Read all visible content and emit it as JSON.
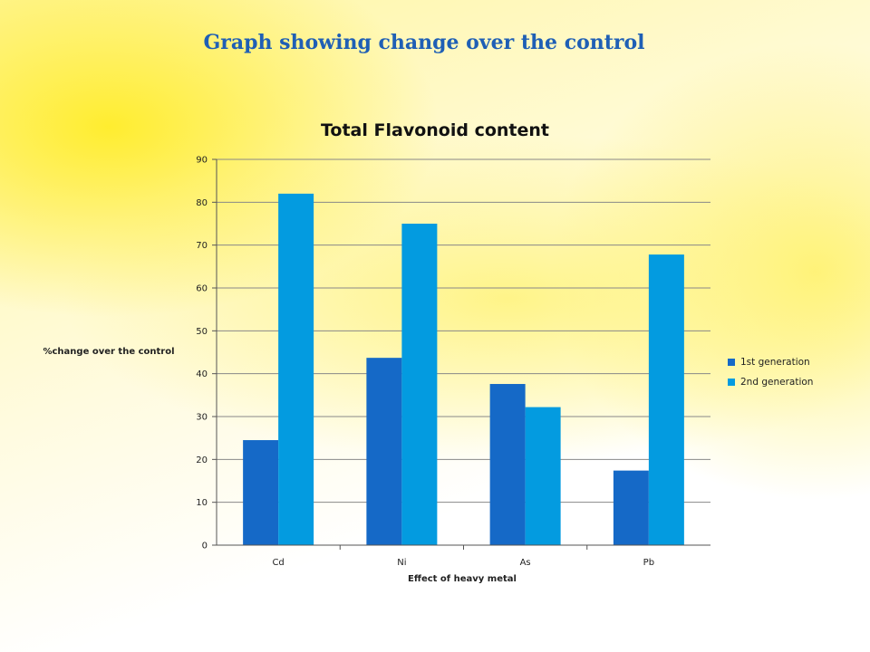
{
  "slide": {
    "title": "Graph showing change over the control"
  },
  "colors": {
    "series1": "#1569c7",
    "series2": "#039be0",
    "title": "#1f5fb5",
    "gridline": "#888888"
  },
  "chart_data": {
    "type": "bar",
    "title": "Total Flavonoid content",
    "xlabel": "Effect of heavy metal",
    "ylabel": "%change over the control",
    "categories": [
      "Cd",
      "Ni",
      "As",
      "Pb"
    ],
    "series": [
      {
        "name": "1st generation",
        "values": [
          24.5,
          43.7,
          37.6,
          17.4
        ]
      },
      {
        "name": "2nd generation",
        "values": [
          82,
          75,
          32.2,
          67.8
        ]
      }
    ],
    "ylim": [
      0,
      90
    ],
    "yticks": [
      0,
      10,
      20,
      30,
      40,
      50,
      60,
      70,
      80,
      90
    ],
    "grid": true,
    "legend_position": "right"
  }
}
